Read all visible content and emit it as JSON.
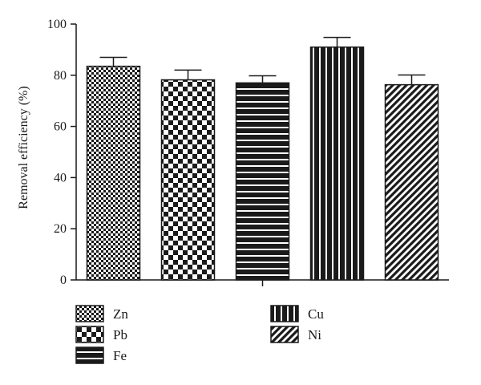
{
  "chart_data": {
    "type": "bar",
    "title": "",
    "xlabel": "",
    "ylabel": "Removal efficiency (%)",
    "ylim": [
      0,
      100
    ],
    "yticks": [
      0,
      20,
      40,
      60,
      80,
      100
    ],
    "grid": false,
    "legend_position": "bottom",
    "categories": [
      "Zn",
      "Pb",
      "Fe",
      "Cu",
      "Ni"
    ],
    "values": [
      83.5,
      78.2,
      77.0,
      91.0,
      76.3
    ],
    "errors": [
      3.5,
      3.8,
      2.8,
      3.8,
      3.8
    ],
    "patterns": [
      "fine-checker",
      "coarse-checker",
      "horizontal-lines",
      "vertical-lines",
      "diagonal-lines"
    ],
    "colors": {
      "ink": "#1a1a1a",
      "background": "#ffffff"
    }
  }
}
